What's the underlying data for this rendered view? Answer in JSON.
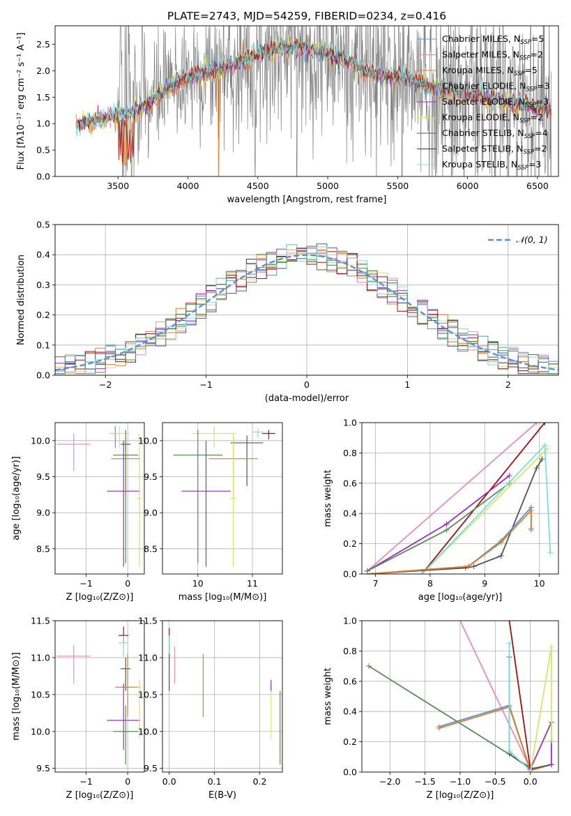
{
  "figure": {
    "title": "PLATE=2743, MJD=54259, FIBERID=0234, z=0.416"
  },
  "colors": {
    "Chabrier MILES": "#5b8fd6",
    "Salpeter MILES": "#e58cc0",
    "Kroupa MILES": "#e07b20",
    "Chabrier ELODIE": "#606060",
    "Salpeter ELODIE": "#9b2fbf",
    "Kroupa ELODIE": "#cfe86e",
    "Chabrier STELIB": "#555555",
    "Salpeter STELIB": "#a01010",
    "Kroupa STELIB": "#7fdbe0",
    "green": "#5a8a5a"
  },
  "chart_data": [
    {
      "id": "spectrum",
      "type": "line",
      "title": "PLATE=2743, MJD=54259, FIBERID=0234, z=0.416",
      "xlabel": "wavelength [Angstrom, rest frame]",
      "ylabel": "Flux [fλ10⁻¹⁷ erg cm⁻² s⁻¹ A⁻¹]",
      "xlim": [
        3050,
        6650
      ],
      "ylim": [
        0,
        2.85
      ],
      "xticks": [
        3500,
        4000,
        4500,
        5000,
        5500,
        6000,
        6500
      ],
      "yticks": [
        0.0,
        0.5,
        1.0,
        1.5,
        2.0,
        2.5
      ],
      "grid": false,
      "legend_position": "top-right",
      "legend": [
        {
          "label": "Chabrier MILES, N",
          "sub": "SSP",
          "tail": "=5",
          "color": "Chabrier MILES"
        },
        {
          "label": "Salpeter MILES, N",
          "sub": "SSP",
          "tail": "=2",
          "color": "Salpeter MILES"
        },
        {
          "label": "Kroupa MILES, N",
          "sub": "SSP",
          "tail": "=5",
          "color": "Kroupa MILES"
        },
        {
          "label": "Chabrier ELODIE, N",
          "sub": "SSP",
          "tail": "=3",
          "color": "Chabrier ELODIE"
        },
        {
          "label": "Salpeter ELODIE, N",
          "sub": "SSP",
          "tail": "=3",
          "color": "Salpeter ELODIE"
        },
        {
          "label": "Kroupa ELODIE, N",
          "sub": "SSP",
          "tail": "=2",
          "color": "Kroupa ELODIE"
        },
        {
          "label": "Chabrier STELIB, N",
          "sub": "SSP",
          "tail": "=4",
          "color": "Chabrier STELIB"
        },
        {
          "label": "Salpeter STELIB, N",
          "sub": "SSP",
          "tail": "=2",
          "color": "Salpeter STELIB"
        },
        {
          "label": "Kroupa STELIB, N",
          "sub": "SSP",
          "tail": "=3",
          "color": "Kroupa STELIB"
        }
      ],
      "continuum": {
        "x": [
          3200,
          3300,
          3400,
          3500,
          3600,
          3700,
          3800,
          3900,
          4000,
          4100,
          4200,
          4300,
          4400,
          4500,
          4600,
          4700,
          4800,
          4900,
          5000,
          5100,
          5200,
          5300,
          5400,
          5500,
          5600,
          5700,
          5800,
          5900,
          6000,
          6100,
          6200,
          6300,
          6400,
          6500
        ],
        "y": [
          0.95,
          1.05,
          1.1,
          1.15,
          1.2,
          1.35,
          1.55,
          1.75,
          1.9,
          1.95,
          2.0,
          2.1,
          2.2,
          2.3,
          2.38,
          2.42,
          2.45,
          2.4,
          2.3,
          2.22,
          2.1,
          1.95,
          1.9,
          1.88,
          1.8,
          1.72,
          1.65,
          1.6,
          1.55,
          1.5,
          1.45,
          1.4,
          1.35,
          1.3
        ]
      }
    },
    {
      "id": "residuals",
      "type": "line",
      "xlabel": "(data-model)/error",
      "ylabel": "Normed distribution",
      "xlim": [
        -2.5,
        2.5
      ],
      "ylim": [
        0.0,
        0.5
      ],
      "xticks": [
        -2,
        -1,
        0,
        1,
        2
      ],
      "yticks": [
        0.0,
        0.1,
        0.2,
        0.3,
        0.4,
        0.5
      ],
      "grid": true,
      "legend_position": "top-right",
      "legend": [
        {
          "label": "𝒩(0, 1)",
          "color": "#5b8fd6"
        }
      ],
      "gaussian": {
        "mu": 0,
        "sigma": 1
      }
    },
    {
      "id": "age_vs_Z",
      "type": "scatter",
      "xlabel": "Z [log₁₀(Z/Z⊙)]",
      "ylabel": "age  [log₁₀(age/yr)]",
      "xlim": [
        -1.75,
        0.4
      ],
      "ylim": [
        8.15,
        10.25
      ],
      "xticks": [
        -1,
        0
      ],
      "yticks": [
        8.5,
        9.0,
        9.5,
        10.0
      ],
      "grid": true,
      "points": [
        {
          "x": -1.3,
          "y": 9.95,
          "xerr": 0.4,
          "yerr": [
            0.37,
            0.15
          ],
          "color": "Salpeter MILES"
        },
        {
          "x": -0.3,
          "y": 10.1,
          "xerr": 0.12,
          "yerr": [
            0.2,
            0.1
          ],
          "color": "Chabrier MILES"
        },
        {
          "x": -0.2,
          "y": 10.1,
          "xerr": 0.25,
          "yerr": [
            0.2,
            0.1
          ],
          "color": "Kroupa ELODIE"
        },
        {
          "x": -0.05,
          "y": 9.95,
          "xerr": 0.12,
          "yerr": [
            0.1,
            0.05
          ],
          "color": "Chabrier STELIB"
        },
        {
          "x": -0.05,
          "y": 9.75,
          "xerr": 0.35,
          "yerr": [
            0.5,
            0.3
          ],
          "color": "Kroupa MILES"
        },
        {
          "x": -0.05,
          "y": 9.8,
          "xerr": 0.3,
          "yerr": [
            1.5,
            0.35
          ],
          "color": "green"
        },
        {
          "x": -0.1,
          "y": 9.3,
          "xerr": 0.4,
          "yerr": [
            1.05,
            0.7
          ],
          "color": "Salpeter ELODIE"
        },
        {
          "x": 0.28,
          "y": 9.2,
          "xerr": 0.05,
          "yerr": [
            0.95,
            0.9
          ],
          "color": "Kroupa ELODIE"
        }
      ]
    },
    {
      "id": "age_vs_mass",
      "type": "scatter",
      "xlabel": "mass [log₁₀(M/M⊙)]",
      "ylabel": "",
      "xlim": [
        9.35,
        11.55
      ],
      "ylim": [
        8.15,
        10.25
      ],
      "xticks": [
        10,
        11
      ],
      "yticks": [
        8.5,
        9.0,
        9.5,
        10.0
      ],
      "grid": true,
      "points": [
        {
          "x": 11.3,
          "y": 10.1,
          "xerr": 0.12,
          "yerr": [
            0.08,
            0.05
          ],
          "color": "Salpeter STELIB"
        },
        {
          "x": 11.1,
          "y": 10.12,
          "xerr": 0.1,
          "yerr": [
            0.08,
            0.05
          ],
          "color": "Kroupa STELIB"
        },
        {
          "x": 10.3,
          "y": 10.1,
          "xerr": 0.4,
          "yerr": [
            0.2,
            0.1
          ],
          "color": "Kroupa ELODIE"
        },
        {
          "x": 10.9,
          "y": 9.97,
          "xerr": 0.3,
          "yerr": [
            0.6,
            0.1
          ],
          "color": "Chabrier STELIB"
        },
        {
          "x": 10.65,
          "y": 9.75,
          "xerr": 0.45,
          "yerr": [
            0.55,
            0.3
          ],
          "color": "Kroupa MILES"
        },
        {
          "x": 10.0,
          "y": 9.8,
          "xerr": 0.45,
          "yerr": [
            1.5,
            0.35
          ],
          "color": "green"
        },
        {
          "x": 10.15,
          "y": 9.3,
          "xerr": 0.45,
          "yerr": [
            1.05,
            0.7
          ],
          "color": "Salpeter ELODIE"
        },
        {
          "x": 10.65,
          "y": 9.2,
          "xerr": 0.05,
          "yerr": [
            0.95,
            0.9
          ],
          "color": "Kroupa ELODIE"
        }
      ]
    },
    {
      "id": "massweight_vs_age",
      "type": "line",
      "xlabel": "age  [log₁₀(age/yr)]",
      "ylabel": "mass weight",
      "xlim": [
        6.75,
        10.35
      ],
      "ylim": [
        0.0,
        1.0
      ],
      "xticks": [
        7,
        8,
        9,
        10
      ],
      "yticks": [
        0.0,
        0.2,
        0.4,
        0.6,
        0.8,
        1.0
      ],
      "grid": true,
      "series": [
        {
          "color": "Salpeter MILES",
          "x": [
            6.85,
            9.95
          ],
          "y": [
            0.02,
            1.0
          ]
        },
        {
          "color": "Salpeter STELIB",
          "x": [
            7.85,
            10.1
          ],
          "y": [
            0.0,
            1.0
          ]
        },
        {
          "color": "Salpeter ELODIE",
          "x": [
            6.85,
            8.3,
            9.45
          ],
          "y": [
            0.02,
            0.33,
            0.65
          ]
        },
        {
          "color": "green",
          "x": [
            6.85,
            8.3,
            9.45
          ],
          "y": [
            0.02,
            0.29,
            0.6
          ]
        },
        {
          "color": "Kroupa ELODIE",
          "x": [
            7.85,
            10.15
          ],
          "y": [
            0.0,
            0.83
          ]
        },
        {
          "color": "Kroupa STELIB",
          "x": [
            7.85,
            10.1,
            10.2
          ],
          "y": [
            0.0,
            0.85,
            0.14
          ]
        },
        {
          "color": "Chabrier STELIB",
          "x": [
            6.85,
            8.65,
            8.8,
            9.3,
            9.95,
            10.05
          ],
          "y": [
            0.0,
            0.04,
            0.05,
            0.12,
            0.7,
            0.76
          ]
        },
        {
          "color": "Chabrier MILES",
          "x": [
            6.85,
            8.7,
            9.3,
            9.85,
            9.85
          ],
          "y": [
            0.0,
            0.05,
            0.22,
            0.44,
            0.29
          ]
        },
        {
          "color": "Kroupa MILES",
          "x": [
            6.85,
            8.7,
            9.3,
            9.85,
            9.85
          ],
          "y": [
            0.0,
            0.05,
            0.21,
            0.42,
            0.3
          ]
        }
      ]
    },
    {
      "id": "mass_vs_Z",
      "type": "scatter",
      "xlabel": "Z [log₁₀(Z/Z⊙)]",
      "ylabel": "mass [log₁₀(M/M⊙)]",
      "xlim": [
        -1.75,
        0.4
      ],
      "ylim": [
        9.45,
        11.5
      ],
      "xticks": [
        -1,
        0
      ],
      "yticks": [
        9.5,
        10.0,
        10.5,
        11.0,
        11.5
      ],
      "grid": true,
      "points": [
        {
          "x": -1.3,
          "y": 11.02,
          "xerr": 0.4,
          "yerr": [
            0.37,
            0.15
          ],
          "color": "Salpeter MILES"
        },
        {
          "x": -0.1,
          "y": 11.3,
          "xerr": 0.12,
          "yerr": [
            0.1,
            0.12
          ],
          "color": "Salpeter STELIB"
        },
        {
          "x": -0.1,
          "y": 11.2,
          "xerr": 0.12,
          "yerr": [
            0.2,
            0.1
          ],
          "color": "Kroupa STELIB"
        },
        {
          "x": -0.05,
          "y": 10.85,
          "xerr": 0.12,
          "yerr": [
            0.3,
            0.15
          ],
          "color": "Chabrier STELIB"
        },
        {
          "x": 0.0,
          "y": 10.6,
          "xerr": 0.3,
          "yerr": [
            0.4,
            0.45
          ],
          "color": "Kroupa MILES"
        },
        {
          "x": -0.05,
          "y": 10.0,
          "xerr": 0.3,
          "yerr": [
            0.45,
            0.35
          ],
          "color": "green"
        },
        {
          "x": -0.1,
          "y": 10.15,
          "xerr": 0.4,
          "yerr": [
            0.4,
            0.5
          ],
          "color": "Salpeter ELODIE"
        },
        {
          "x": 0.28,
          "y": 10.6,
          "xerr": 0.05,
          "yerr": [
            0.7,
            0.1
          ],
          "color": "Kroupa ELODIE"
        }
      ]
    },
    {
      "id": "mass_vs_EBV",
      "type": "scatter",
      "xlabel": "E(B-V)",
      "ylabel": "",
      "xlim": [
        -0.015,
        0.25
      ],
      "ylim": [
        9.45,
        11.5
      ],
      "xticks": [
        0.0,
        0.1,
        0.2
      ],
      "yticks": [
        9.5,
        10.0,
        10.5,
        11.0,
        11.5
      ],
      "grid": true,
      "points": [
        {
          "x": 0.0,
          "y": 11.25,
          "xerr": 0.0,
          "yerr": [
            0.25,
            0.15
          ],
          "color": "Salpeter STELIB"
        },
        {
          "x": 0.0,
          "y": 11.1,
          "xerr": 0.0,
          "yerr": [
            0.25,
            0.2
          ],
          "color": "Kroupa STELIB"
        },
        {
          "x": 0.0,
          "y": 10.85,
          "xerr": 0.0,
          "yerr": [
            0.3,
            0.2
          ],
          "color": "Chabrier STELIB"
        },
        {
          "x": 0.012,
          "y": 10.9,
          "xerr": 0.0,
          "yerr": [
            0.25,
            0.25
          ],
          "color": "Salpeter MILES"
        },
        {
          "x": 0.075,
          "y": 10.6,
          "xerr": 0.0,
          "yerr": [
            0.4,
            0.45
          ],
          "color": "Kroupa MILES"
        },
        {
          "x": 0.225,
          "y": 10.6,
          "xerr": 0.0,
          "yerr": [
            0.7,
            0.1
          ],
          "color": "Kroupa ELODIE"
        },
        {
          "x": 0.225,
          "y": 10.65,
          "xerr": 0.0,
          "yerr": [
            0.1,
            0.05
          ],
          "color": "Salpeter ELODIE"
        },
        {
          "x": 0.245,
          "y": 10.0,
          "xerr": 0.0,
          "yerr": [
            0.45,
            0.55
          ],
          "color": "green"
        }
      ]
    },
    {
      "id": "massweight_vs_Z",
      "type": "line",
      "xlabel": "Z [log₁₀(Z/Z⊙)]",
      "ylabel": "mass weight",
      "xlim": [
        -2.4,
        0.4
      ],
      "ylim": [
        0.0,
        1.0
      ],
      "xticks": [
        -2.0,
        -1.5,
        -1.0,
        -0.5,
        0.0
      ],
      "yticks": [
        0.0,
        0.2,
        0.4,
        0.6,
        0.8,
        1.0
      ],
      "grid": true,
      "series": [
        {
          "color": "green",
          "x": [
            -2.3,
            0.0
          ],
          "y": [
            0.7,
            0.03
          ]
        },
        {
          "color": "Salpeter MILES",
          "x": [
            -1.0,
            0.0
          ],
          "y": [
            1.0,
            0.02
          ]
        },
        {
          "color": "Chabrier MILES",
          "x": [
            -1.3,
            -0.3,
            0.0,
            0.3
          ],
          "y": [
            0.3,
            0.44,
            0.01,
            0.05
          ]
        },
        {
          "color": "Kroupa MILES",
          "x": [
            -1.3,
            -0.3,
            0.0,
            0.3
          ],
          "y": [
            0.29,
            0.43,
            0.01,
            0.05
          ]
        },
        {
          "color": "Salpeter STELIB",
          "x": [
            -0.3,
            0.0
          ],
          "y": [
            1.0,
            0.02
          ]
        },
        {
          "color": "Chabrier STELIB",
          "x": [
            -0.3,
            -0.3,
            0.0,
            0.3
          ],
          "y": [
            0.76,
            0.12,
            0.02,
            0.05
          ]
        },
        {
          "color": "Kroupa STELIB",
          "x": [
            -0.3,
            -0.3,
            0.0
          ],
          "y": [
            0.85,
            0.14,
            0.01
          ]
        },
        {
          "color": "Salpeter ELODIE",
          "x": [
            0.0,
            0.3,
            0.3
          ],
          "y": [
            0.02,
            0.33,
            0.05
          ]
        },
        {
          "color": "Kroupa ELODIE",
          "x": [
            0.0,
            0.3,
            0.3
          ],
          "y": [
            0.0,
            0.83,
            0.21
          ]
        }
      ]
    }
  ]
}
